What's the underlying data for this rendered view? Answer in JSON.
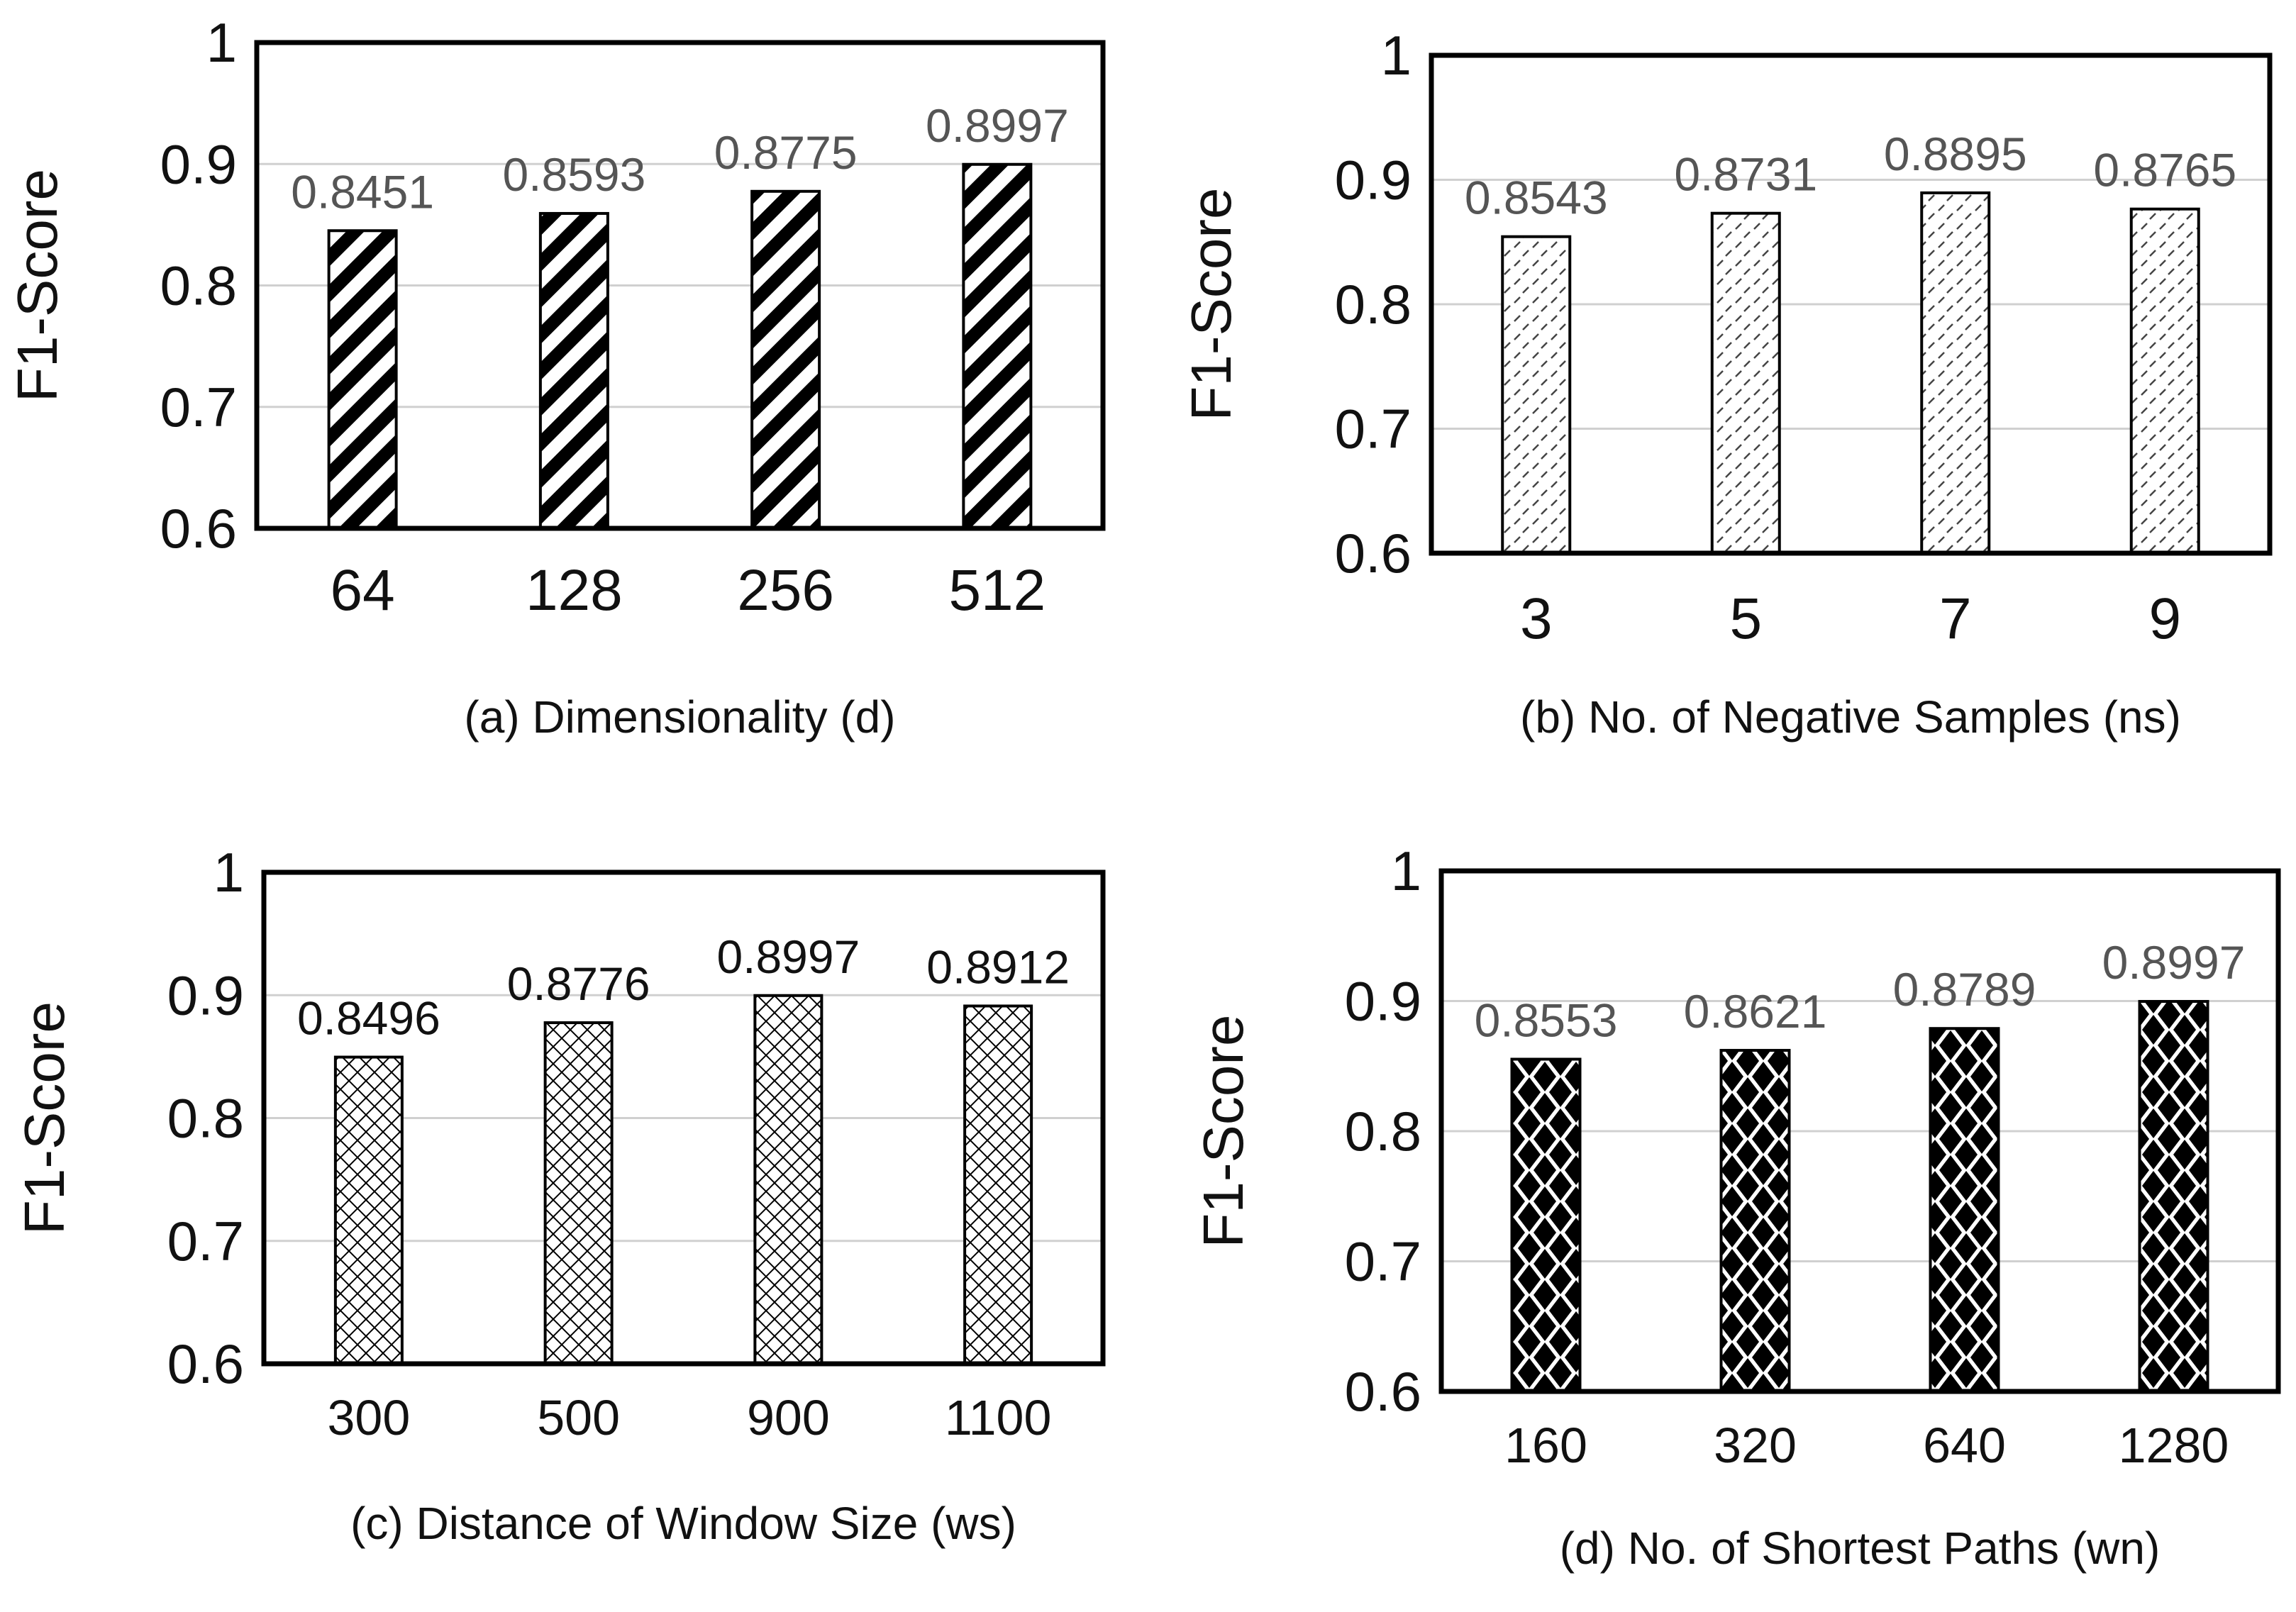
{
  "chart_data": [
    {
      "type": "bar",
      "categories": [
        "64",
        "128",
        "256",
        "512"
      ],
      "values": [
        0.8451,
        0.8593,
        0.8775,
        0.8997
      ],
      "value_labels": [
        "0.8451",
        "0.8593",
        "0.8775",
        "0.8997"
      ],
      "ylabel": "F1-Score",
      "caption": "(a) Dimensionality (d)",
      "ylim": [
        0.6,
        1
      ],
      "yticks": [
        "0.6",
        "0.7",
        "0.8",
        "0.9",
        "1"
      ],
      "grid": true,
      "pattern": "diagonal-stripes",
      "value_label_color": "#555555"
    },
    {
      "type": "bar",
      "categories": [
        "3",
        "5",
        "7",
        "9"
      ],
      "values": [
        0.8543,
        0.8731,
        0.8895,
        0.8765
      ],
      "value_labels": [
        "0.8543",
        "0.8731",
        "0.8895",
        "0.8765"
      ],
      "ylabel": "F1-Score",
      "caption": "(b) No. of Negative Samples (ns)",
      "ylim": [
        0.6,
        1
      ],
      "yticks": [
        "0.6",
        "0.7",
        "0.8",
        "0.9",
        "1"
      ],
      "grid": true,
      "pattern": "dashed-diagonal",
      "value_label_color": "#555555"
    },
    {
      "type": "bar",
      "categories": [
        "300",
        "500",
        "900",
        "1100"
      ],
      "values": [
        0.8496,
        0.8776,
        0.8997,
        0.8912
      ],
      "value_labels": [
        "0.8496",
        "0.8776",
        "0.8997",
        "0.8912"
      ],
      "ylabel": "F1-Score",
      "caption": "(c) Distance of Window Size (ws)",
      "ylim": [
        0.6,
        1
      ],
      "yticks": [
        "0.6",
        "0.7",
        "0.8",
        "0.9",
        "1"
      ],
      "grid": true,
      "pattern": "crosshatch",
      "value_label_color": "#111111"
    },
    {
      "type": "bar",
      "categories": [
        "160",
        "320",
        "640",
        "1280"
      ],
      "values": [
        0.8553,
        0.8621,
        0.8789,
        0.8997
      ],
      "value_labels": [
        "0.8553",
        "0.8621",
        "0.8789",
        "0.8997"
      ],
      "ylabel": "F1-Score",
      "caption": "(d) No. of Shortest Paths (wn)",
      "ylim": [
        0.6,
        1
      ],
      "yticks": [
        "0.6",
        "0.7",
        "0.8",
        "0.9",
        "1"
      ],
      "grid": true,
      "pattern": "diamonds",
      "value_label_color": "#555555"
    }
  ]
}
